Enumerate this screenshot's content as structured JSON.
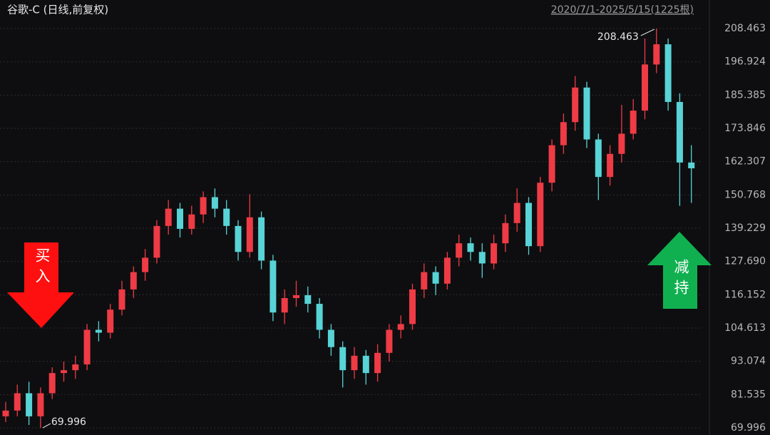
{
  "chart_data": {
    "type": "candlestick",
    "title": "谷歌-C (日线,前复权)",
    "subtitle": "2020/7/1-2025/5/15(1225根)",
    "annotations": {
      "buy": "买入",
      "sell": "减持"
    },
    "up_color": "#ee3b45",
    "down_color": "#58d3d6",
    "ylim": [
      69.996,
      208.463
    ],
    "yticks": [
      69.996,
      81.535,
      93.074,
      104.613,
      116.152,
      {
        "value": 127.69,
        "label": "127.690"
      },
      139.229,
      150.768,
      162.307,
      173.846,
      185.385,
      196.924,
      208.463
    ],
    "grid": true,
    "candles": {
      "open": [
        74,
        76,
        82,
        74,
        82,
        89,
        90,
        92,
        104,
        103,
        111,
        118,
        124,
        129,
        140,
        146,
        139,
        144,
        150,
        146,
        140,
        131,
        143,
        128,
        110,
        115,
        116,
        113,
        104,
        98,
        90,
        95,
        89,
        96,
        104,
        106,
        118,
        124,
        120,
        129,
        134,
        131,
        127,
        134,
        141,
        148,
        133,
        155,
        168,
        176,
        188,
        170,
        157,
        165,
        172,
        180,
        196,
        203,
        183,
        162
      ],
      "close": [
        76,
        82,
        74,
        82,
        89,
        90,
        92,
        104,
        103,
        111,
        118,
        124,
        129,
        140,
        146,
        139,
        144,
        150,
        146,
        140,
        131,
        143,
        128,
        110,
        115,
        116,
        113,
        104,
        98,
        90,
        95,
        89,
        96,
        104,
        106,
        118,
        124,
        120,
        129,
        134,
        131,
        127,
        134,
        141,
        148,
        133,
        155,
        168,
        176,
        188,
        170,
        157,
        165,
        172,
        180,
        196,
        203,
        183,
        162,
        160
      ],
      "high": [
        79,
        85,
        86,
        84,
        91,
        93,
        95,
        106,
        107,
        113,
        121,
        126,
        132,
        142,
        149,
        148,
        147,
        152,
        153,
        149,
        142,
        151,
        145,
        130,
        118,
        121,
        119,
        115,
        106,
        100,
        98,
        97,
        99,
        106,
        109,
        120,
        127,
        126,
        131,
        137,
        136,
        134,
        137,
        144,
        153,
        150,
        157,
        170,
        179,
        192,
        190,
        172,
        168,
        182,
        184,
        205,
        208.463,
        205,
        186,
        168
      ],
      "low": [
        72,
        74,
        71,
        69.996,
        80,
        86,
        87,
        90,
        100,
        101,
        109,
        115,
        121,
        127,
        137,
        136,
        137,
        141,
        143,
        137,
        128,
        129,
        125,
        107,
        106,
        112,
        110,
        101,
        95,
        84,
        87,
        85,
        86,
        93,
        101,
        104,
        115,
        116,
        118,
        126,
        128,
        122,
        125,
        131,
        138,
        130,
        131,
        152,
        165,
        173,
        167,
        149,
        154,
        162,
        170,
        177,
        193,
        180,
        147,
        148
      ]
    }
  }
}
